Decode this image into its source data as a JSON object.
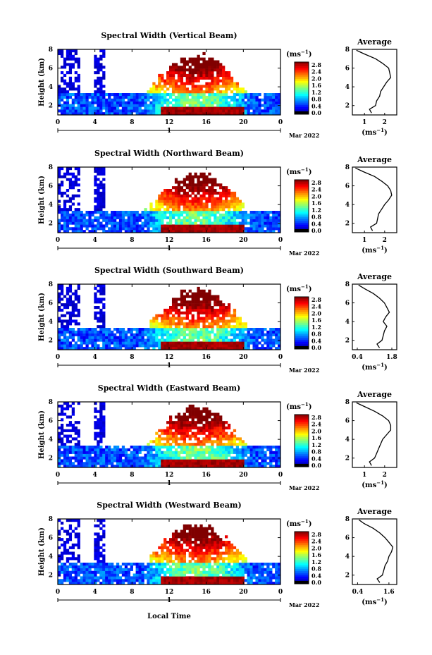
{
  "shared": {
    "ylabel": "Height (km)",
    "colorbar_unit": "(ms",
    "unit_exp": "−1",
    "avg_title": "Average",
    "avg_xlabel": "(ms",
    "day_label": "1",
    "month_label": "Mar 2022",
    "xlabel": "Local Time",
    "x_ticks": [
      "0",
      "4",
      "8",
      "12",
      "16",
      "20",
      "0"
    ],
    "y_ticks": [
      "2",
      "4",
      "6",
      "8"
    ],
    "avg_y_ticks": [
      "2",
      "4",
      "6",
      "8"
    ],
    "colorbar_ticks": [
      "2.8",
      "2.4",
      "2.0",
      "1.6",
      "1.2",
      "0.8",
      "0.4",
      "0.0"
    ]
  },
  "chart_data": [
    {
      "type": "heatmap",
      "title": "Spectral Width (Vertical Beam)",
      "x_range_hours": [
        0,
        24
      ],
      "y_range_km": [
        1,
        8
      ],
      "color_range": [
        0.0,
        2.8
      ],
      "avg_profile": {
        "x_ticks": [
          "1",
          "2"
        ],
        "x_tick_values": [
          1,
          2
        ],
        "xlim": [
          0.4,
          2.6
        ],
        "height_km": [
          1.2,
          1.6,
          2.0,
          2.5,
          3.0,
          3.5,
          4.0,
          4.5,
          5.0,
          5.5,
          6.0,
          6.5,
          7.0,
          7.5,
          7.9
        ],
        "width_ms": [
          1.35,
          1.25,
          1.55,
          1.6,
          1.75,
          1.8,
          1.95,
          2.1,
          2.3,
          2.25,
          2.2,
          1.9,
          1.55,
          1.0,
          0.6
        ]
      }
    },
    {
      "type": "heatmap",
      "title": "Spectral Width (Northward Beam)",
      "x_range_hours": [
        0,
        24
      ],
      "y_range_km": [
        1,
        8
      ],
      "color_range": [
        0.0,
        2.8
      ],
      "avg_profile": {
        "x_ticks": [
          "1",
          "2"
        ],
        "x_tick_values": [
          1,
          2
        ],
        "xlim": [
          0.4,
          2.6
        ],
        "height_km": [
          1.2,
          1.6,
          2.0,
          2.5,
          3.0,
          3.5,
          4.0,
          4.5,
          5.0,
          5.5,
          6.0,
          6.5,
          7.0,
          7.5,
          7.9
        ],
        "width_ms": [
          1.4,
          1.3,
          1.6,
          1.65,
          1.7,
          1.85,
          2.0,
          2.2,
          2.35,
          2.3,
          2.15,
          1.85,
          1.5,
          0.95,
          0.55
        ]
      }
    },
    {
      "type": "heatmap",
      "title": "Spectral Width (Southward Beam)",
      "x_range_hours": [
        0,
        24
      ],
      "y_range_km": [
        1,
        8
      ],
      "color_range": [
        0.0,
        2.8
      ],
      "avg_profile": {
        "x_ticks": [
          "0.4",
          "1.8"
        ],
        "x_tick_values": [
          0.4,
          1.8
        ],
        "xlim": [
          0.2,
          2.0
        ],
        "height_km": [
          1.2,
          1.6,
          2.0,
          2.5,
          3.0,
          3.5,
          4.0,
          4.5,
          5.0,
          5.5,
          6.0,
          6.5,
          7.0,
          7.5,
          7.9
        ],
        "width_ms": [
          1.3,
          1.2,
          1.4,
          1.45,
          1.5,
          1.6,
          1.45,
          1.55,
          1.7,
          1.6,
          1.5,
          1.3,
          1.05,
          0.7,
          0.45
        ]
      }
    },
    {
      "type": "heatmap",
      "title": "Spectral Width (Eastward Beam)",
      "x_range_hours": [
        0,
        24
      ],
      "y_range_km": [
        1,
        8
      ],
      "color_range": [
        0.0,
        2.8
      ],
      "avg_profile": {
        "x_ticks": [
          "1",
          "2"
        ],
        "x_tick_values": [
          1,
          2
        ],
        "xlim": [
          0.4,
          2.6
        ],
        "height_km": [
          1.2,
          1.6,
          2.0,
          2.5,
          3.0,
          3.5,
          4.0,
          4.5,
          5.0,
          5.5,
          6.0,
          6.5,
          7.0,
          7.5,
          7.9
        ],
        "width_ms": [
          1.35,
          1.25,
          1.5,
          1.6,
          1.7,
          1.8,
          1.9,
          2.1,
          2.3,
          2.3,
          2.2,
          1.9,
          1.5,
          1.0,
          0.6
        ]
      }
    },
    {
      "type": "heatmap",
      "title": "Spectral Width (Westward Beam)",
      "x_range_hours": [
        0,
        24
      ],
      "y_range_km": [
        1,
        8
      ],
      "color_range": [
        0.0,
        2.8
      ],
      "avg_profile": {
        "x_ticks": [
          "0.4",
          "1.6"
        ],
        "x_tick_values": [
          0.4,
          1.6
        ],
        "xlim": [
          0.2,
          1.9
        ],
        "height_km": [
          1.2,
          1.6,
          2.0,
          2.5,
          3.0,
          3.5,
          4.0,
          4.5,
          5.0,
          5.5,
          6.0,
          6.5,
          7.0,
          7.5,
          7.9
        ],
        "width_ms": [
          1.25,
          1.15,
          1.35,
          1.4,
          1.45,
          1.55,
          1.6,
          1.7,
          1.75,
          1.6,
          1.45,
          1.25,
          1.0,
          0.65,
          0.45
        ]
      }
    }
  ]
}
